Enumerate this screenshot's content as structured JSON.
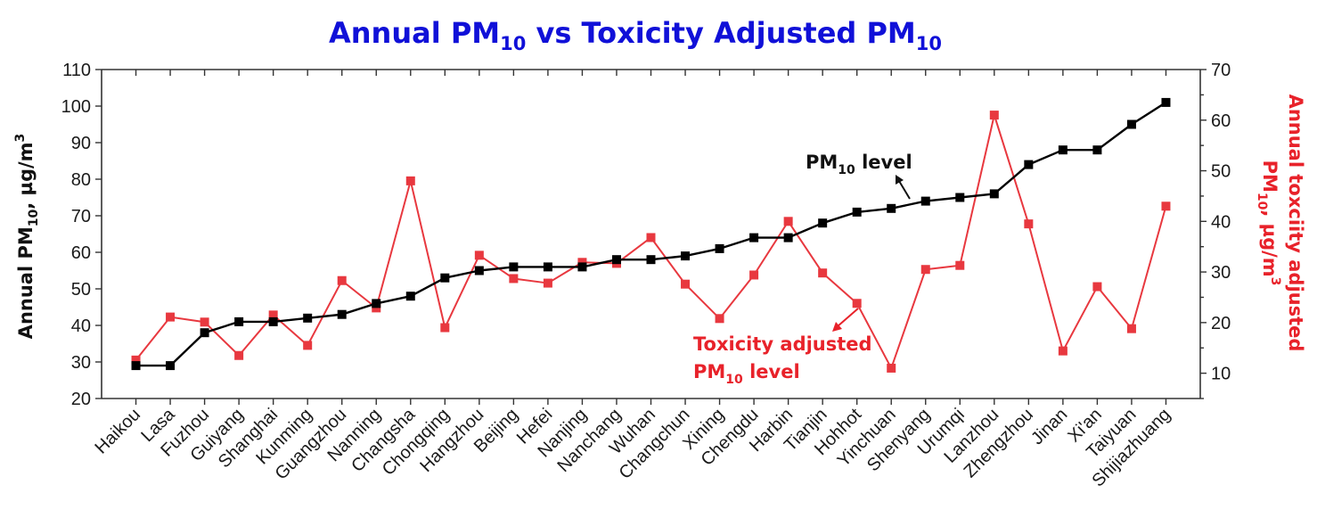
{
  "chart_data": {
    "type": "line",
    "title": {
      "main": "Annual PM",
      "sub1": "10",
      "mid": " vs Toxicity Adjusted PM",
      "sub2": "10"
    },
    "xlabel": "",
    "ylabel_left": {
      "pre": "Annual PM",
      "sub": "10",
      "post": ", µg/m",
      "sup": "3"
    },
    "ylabel_right": {
      "line1": "Annual toxciity adjusted",
      "pre": "PM",
      "sub": "10",
      "post": ", µg/m",
      "sup": "3"
    },
    "ylim_left": [
      20,
      110
    ],
    "yticks_left": [
      20,
      30,
      40,
      50,
      60,
      70,
      80,
      90,
      100,
      110
    ],
    "ylim_right": [
      5,
      70
    ],
    "yticks_right": [
      10,
      20,
      30,
      40,
      50,
      60,
      70
    ],
    "categories": [
      "Haikou",
      "Lasa",
      "Fuzhou",
      "Guiyang",
      "Shanghai",
      "Kunming",
      "Guangzhou",
      "Nanning",
      "Changsha",
      "Chongqing",
      "Hangzhou",
      "Beijing",
      "Hefei",
      "Nanjing",
      "Nanchang",
      "Wuhan",
      "Changchun",
      "Xining",
      "Chengdu",
      "Harbin",
      "Tianjin",
      "Hohhot",
      "Yinchuan",
      "Shenyang",
      "Urumqi",
      "Lanzhou",
      "Zhengzhou",
      "Jinan",
      "Xi'an",
      "Taiyuan",
      "Shijiazhuang"
    ],
    "series": [
      {
        "name": "PM10 level",
        "axis": "left",
        "color": "#000000",
        "values": [
          29,
          29,
          38,
          41,
          41,
          42,
          43,
          46,
          48,
          53,
          55,
          56,
          56,
          56,
          58,
          58,
          59,
          61,
          64,
          64,
          68,
          71,
          72,
          74,
          75,
          76,
          84,
          88,
          88,
          95,
          101
        ]
      },
      {
        "name": "Toxicity adjusted PM10 level",
        "axis": "right",
        "color": "#e8383f",
        "values": [
          12.6,
          21.1,
          20.1,
          13.5,
          21.5,
          15.5,
          28.3,
          22.9,
          48,
          19,
          33.3,
          28.7,
          27.8,
          31.9,
          31.7,
          36.8,
          27.6,
          20.8,
          29.4,
          40,
          29.8,
          23.8,
          11,
          30.5,
          31.3,
          61,
          39.5,
          14.4,
          27.1,
          18.8,
          43
        ]
      }
    ],
    "annotations": {
      "black": {
        "pre": "PM",
        "sub": "10",
        "post": " level"
      },
      "red": {
        "line1": "Toxicity adjusted",
        "pre": "PM",
        "sub": "10",
        "post": " level"
      }
    },
    "grid": false,
    "legend": "none"
  }
}
